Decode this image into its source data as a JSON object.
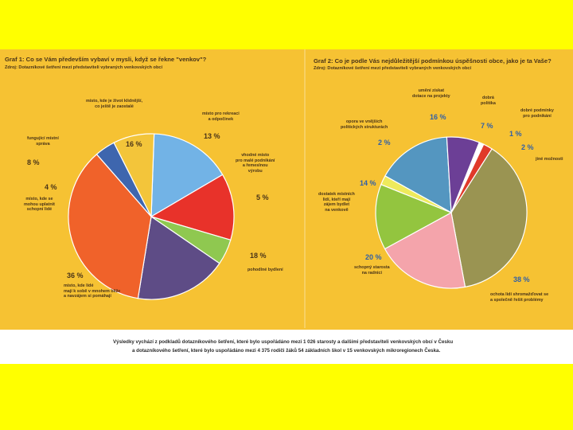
{
  "chart_data": [
    {
      "type": "pie",
      "title": "Graf 1: Co se Vám především vybaví v mysli, když se řekne \"venkov\"?",
      "subtitle": "Zdroj: Dotazníkové šetření mezi představiteli vybraných venkovských obcí",
      "slices": [
        {
          "label": "místo, kde je život klidnější, co ještě je zaostalé",
          "value": 16,
          "color": "#72b3e6",
          "value_label": "16 %"
        },
        {
          "label": "místo pro rekreaci a odpočinek",
          "value": 13,
          "color": "#e8322a",
          "value_label": "13 %"
        },
        {
          "label": "vhodné místo pro malé podnikání a řemeslnou výrobu",
          "value": 5,
          "color": "#8fc850",
          "value_label": "5 %"
        },
        {
          "label": "pohodlné bydlení",
          "value": 18,
          "color": "#5e4c86",
          "value_label": "18 %"
        },
        {
          "label": "místo, kde lidé mají k sobě v mnohem blíže a navzájem si pomáhají",
          "value": 36,
          "color": "#f0622a",
          "value_label": "36 %"
        },
        {
          "label": "místo, kde se mohou uplatnit schopní lidé",
          "value": 4,
          "color": "#3e66ae",
          "value_label": "4 %"
        },
        {
          "label": "fungující místní správa",
          "value": 8,
          "color": "#f3c53a",
          "value_label": "8 %"
        }
      ]
    },
    {
      "type": "pie",
      "title": "Graf 2: Co je podle Vás nejdůležitější podmínkou úspěšnosti obce, jako je ta Vaše?",
      "subtitle": "Zdroj: Dotazníkové šetření mezi představiteli vybraných venkovských obcí",
      "slices": [
        {
          "label": "umění získat dotace na projekty",
          "value": 16,
          "color": "#5496c0",
          "value_label": "16 %"
        },
        {
          "label": "dobrá politika",
          "value": 7,
          "color": "#6c3f96",
          "value_label": "7 %"
        },
        {
          "label": "dobré podmínky pro podnikání",
          "value": 1,
          "color": "#ffffff",
          "value_label": "1 %"
        },
        {
          "label": "jiné možnosti",
          "value": 2,
          "color": "#e03a2a",
          "value_label": "2 %"
        },
        {
          "label": "ochota lidí shromažďovat se a společně řešit problémy",
          "value": 38,
          "color": "#9a9452",
          "value_label": "38 %"
        },
        {
          "label": "schopný starosta na radnici",
          "value": 20,
          "color": "#f4a4ab",
          "value_label": "20 %"
        },
        {
          "label": "dostatek místních lidí, kteří mají zájem bydlet na venkově",
          "value": 14,
          "color": "#93c53f",
          "value_label": "14 %"
        },
        {
          "label": "opora ve vnějších politických strukturách",
          "value": 2,
          "color": "#eeea5c",
          "value_label": "2 %"
        }
      ]
    }
  ],
  "text": {
    "g1_title": "Graf 1: Co se Vám především vybaví v mysli, když se řekne \"venkov\"?",
    "g1_source": "Zdroj: Dotazníkové šetření mezi představiteli vybraných venkovských obcí",
    "g2_title": "Graf 2: Co je podle Vás nejdůležitější podmínkou úspěšnosti obce, jako je ta Vaše?",
    "g2_source": "Zdroj: Dotazníkové šetření mezi představiteli vybraných venkovských obcí",
    "footer_1": "Výsledky vychází z podkladů dotazníkového šetření, které bylo uspořádáno mezi 1 026 starosty a dalšími představiteli venkovských obcí v Česku",
    "footer_2": "a dotazníkového šetření, které bylo uspořádáno mezi 4 375 rodiči žáků 54 základních škol v 15 venkovských mikroregionech Česka.",
    "g1_labels": {
      "klid": "místo, kde je život klidnější,\nco ještě je zaostalé",
      "rekreace": "místo pro rekreaci\na odpočinek",
      "podnikani": "vhodné místo\npro malé podnikání\na řemeslnou\nvýrobu",
      "bydleni": "pohodlné bydlení",
      "pomoc": "místo, kde lidé\nmají k sobě v mnohem blíže\na navzájem si pomáhají",
      "uplatneni": "místo, kde se\nmohou uplatnit\nschopní lidé",
      "sprava": "fungující místní\nspráva"
    },
    "g2_labels": {
      "dotace": "umění získat\ndotace na projekty",
      "politika": "dobrá\npolitika",
      "podminky": "dobré podmínky\npro podnikání",
      "jine": "jiné možnosti",
      "opora": "opora ve vnějších\npolitických strukturách",
      "lide": "dostatek místních\nlidí, kteří mají\nzájem bydlet\nna venkově",
      "starosta": "schopný starosta\nna radnici",
      "ochota": "ochota lidí shromažďovat se\na společně řešit problémy"
    }
  }
}
